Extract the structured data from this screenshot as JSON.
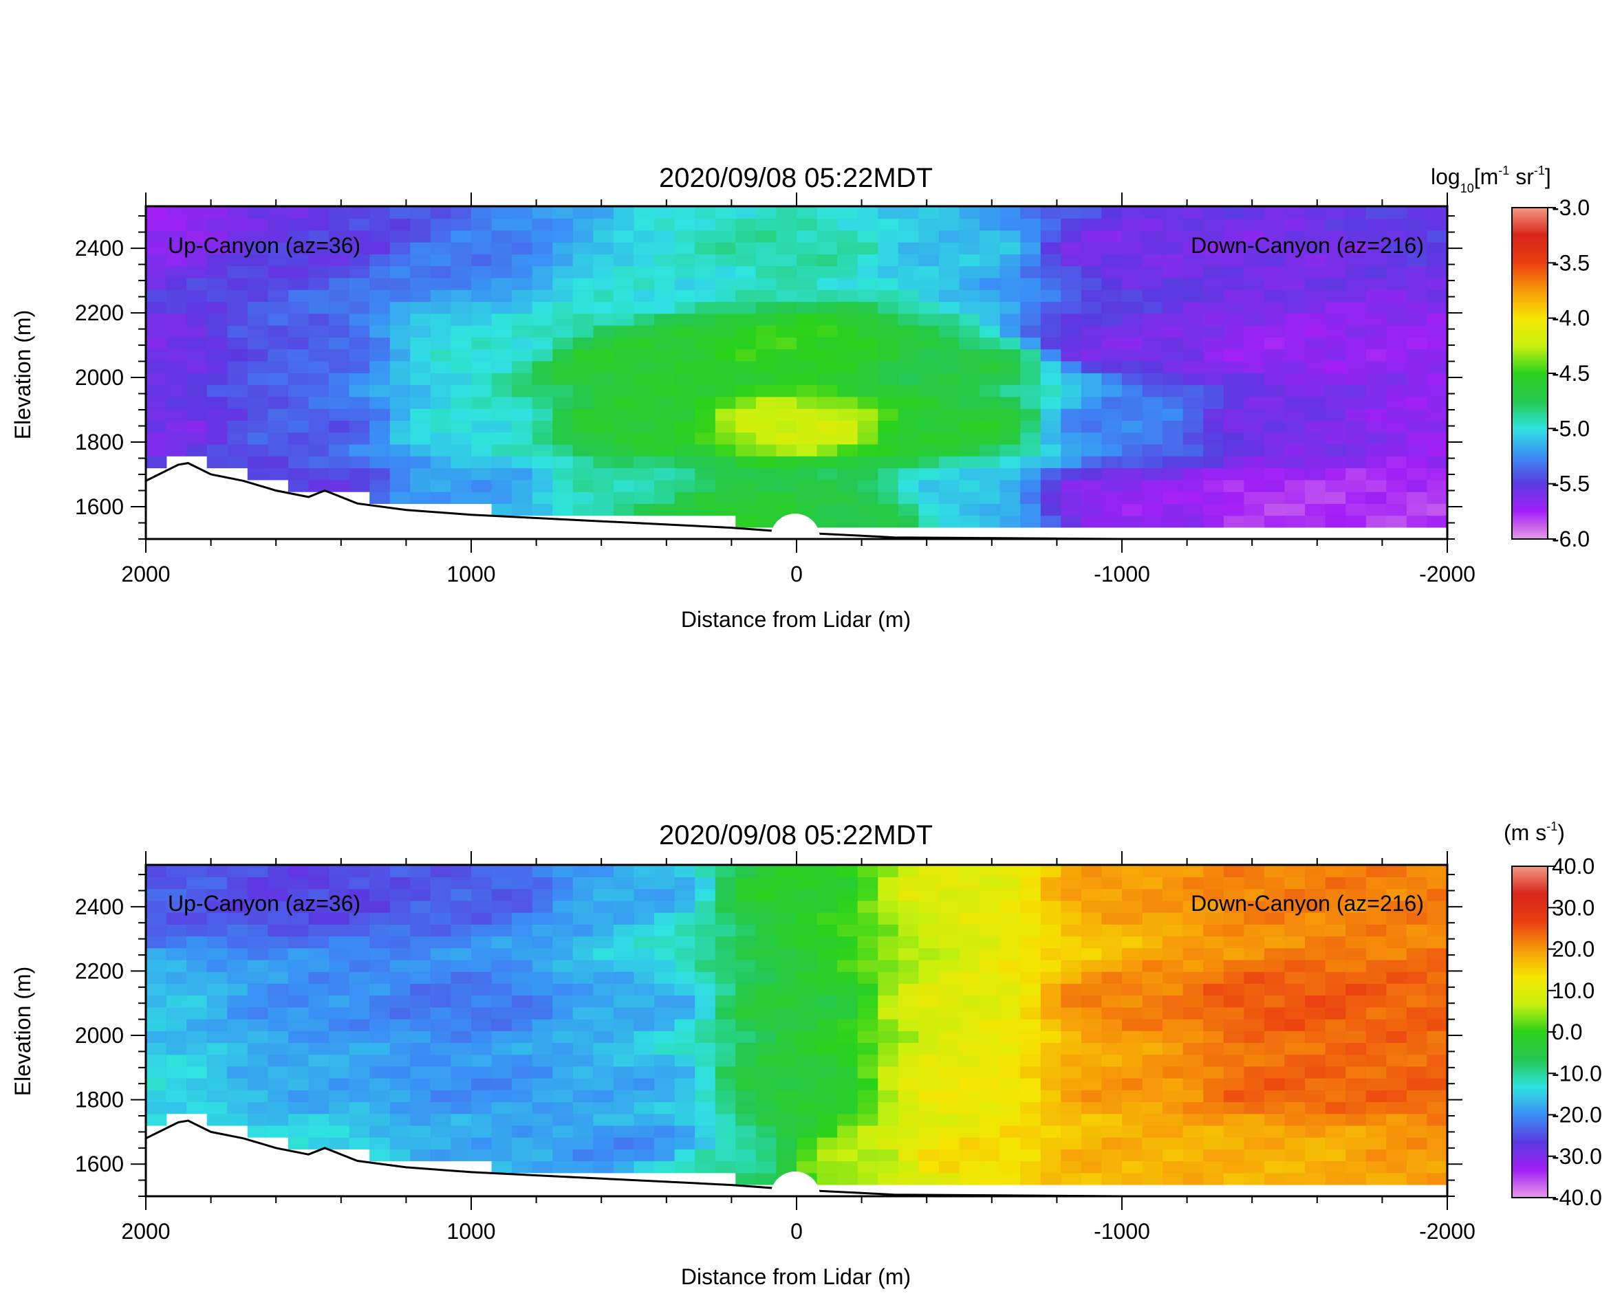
{
  "chart_data": [
    {
      "type": "heatmap",
      "title": "2020/09/08 05:22MDT",
      "xlabel": "Distance from Lidar (m)",
      "ylabel": "Elevation (m)",
      "xlim": [
        2000,
        -2000
      ],
      "ylim": [
        1500,
        2530
      ],
      "x_ticks": [
        2000,
        1000,
        0,
        -1000,
        -2000
      ],
      "y_ticks": [
        1600,
        1800,
        2000,
        2200,
        2400
      ],
      "grid": false,
      "annotations": [
        "Up-Canyon (az=36)",
        "Down-Canyon (az=216)"
      ],
      "colorbar": {
        "label_base": "log",
        "label_sub": "10",
        "label_unit_1": "[m",
        "label_exp_1": "-1",
        "label_unit_2": " sr",
        "label_exp_2": "-1",
        "label_close": "]",
        "vmin": -6.0,
        "vmax": -3.0,
        "ticks": [
          "-3.0",
          "-3.5",
          "-4.0",
          "-4.5",
          "-5.0",
          "-5.5",
          "-6.0"
        ],
        "colors": [
          "#e79be6",
          "#a21ff6",
          "#5a3ae0",
          "#3a8ff5",
          "#2fe3e0",
          "#24c850",
          "#2bd21b",
          "#c9f10f",
          "#f5e500",
          "#f79a09",
          "#eb3e11",
          "#d8241a",
          "#f29a84"
        ]
      },
      "field": {
        "description_cells": [
          {
            "x": 2000,
            "y": 2450,
            "v": -5.7
          },
          {
            "x": 1500,
            "y": 2400,
            "v": -5.5
          },
          {
            "x": 1000,
            "y": 2350,
            "v": -5.3
          },
          {
            "x": 500,
            "y": 2300,
            "v": -5.0
          },
          {
            "x": 0,
            "y": 2400,
            "v": -4.9
          },
          {
            "x": -500,
            "y": 2400,
            "v": -5.1
          },
          {
            "x": -1000,
            "y": 2400,
            "v": -5.6
          },
          {
            "x": -1500,
            "y": 2400,
            "v": -5.6
          },
          {
            "x": -2000,
            "y": 2450,
            "v": -5.5
          },
          {
            "x": 2000,
            "y": 2100,
            "v": -5.6
          },
          {
            "x": 1500,
            "y": 2100,
            "v": -5.4
          },
          {
            "x": 1000,
            "y": 2100,
            "v": -5.0
          },
          {
            "x": 500,
            "y": 2050,
            "v": -4.6
          },
          {
            "x": 0,
            "y": 2100,
            "v": -4.5
          },
          {
            "x": -500,
            "y": 2050,
            "v": -4.7
          },
          {
            "x": -1000,
            "y": 2100,
            "v": -5.6
          },
          {
            "x": -1500,
            "y": 2100,
            "v": -5.7
          },
          {
            "x": -2000,
            "y": 2100,
            "v": -5.7
          },
          {
            "x": 2000,
            "y": 1850,
            "v": -5.6
          },
          {
            "x": 1500,
            "y": 1850,
            "v": -5.4
          },
          {
            "x": 1000,
            "y": 1850,
            "v": -5.0
          },
          {
            "x": 500,
            "y": 1850,
            "v": -4.6
          },
          {
            "x": 0,
            "y": 1850,
            "v": -4.2
          },
          {
            "x": -500,
            "y": 1850,
            "v": -4.6
          },
          {
            "x": -1000,
            "y": 1850,
            "v": -5.3
          },
          {
            "x": -1500,
            "y": 1850,
            "v": -5.6
          },
          {
            "x": -2000,
            "y": 1850,
            "v": -5.7
          },
          {
            "x": 1500,
            "y": 1650,
            "v": -5.5
          },
          {
            "x": 1000,
            "y": 1650,
            "v": -5.2
          },
          {
            "x": 500,
            "y": 1650,
            "v": -4.9
          },
          {
            "x": 200,
            "y": 1600,
            "v": -4.6
          },
          {
            "x": -200,
            "y": 1600,
            "v": -4.7
          },
          {
            "x": -500,
            "y": 1620,
            "v": -5.1
          },
          {
            "x": -1000,
            "y": 1620,
            "v": -5.7
          },
          {
            "x": -1500,
            "y": 1620,
            "v": -5.8
          },
          {
            "x": -2000,
            "y": 1620,
            "v": -5.8
          }
        ]
      }
    },
    {
      "type": "heatmap",
      "title": "2020/09/08 05:22MDT",
      "xlabel": "Distance from Lidar (m)",
      "ylabel": "Elevation (m)",
      "xlim": [
        2000,
        -2000
      ],
      "ylim": [
        1500,
        2530
      ],
      "x_ticks": [
        2000,
        1000,
        0,
        -1000,
        -2000
      ],
      "y_ticks": [
        1600,
        1800,
        2000,
        2200,
        2400
      ],
      "grid": false,
      "annotations": [
        "Up-Canyon (az=36)",
        "Down-Canyon (az=216)"
      ],
      "colorbar": {
        "label_open": "(m s",
        "label_exp": "-1",
        "label_close": ")",
        "vmin": -40.0,
        "vmax": 40.0,
        "ticks": [
          "40.0",
          "30.0",
          "20.0",
          "10.0",
          "0.0",
          "-10.0",
          "-20.0",
          "-30.0",
          "-40.0"
        ],
        "colors": [
          "#e79be6",
          "#a21ff6",
          "#5a3ae0",
          "#3a8ff5",
          "#2fe3e0",
          "#24c850",
          "#2bd21b",
          "#c9f10f",
          "#f5e500",
          "#f79a09",
          "#eb3e11",
          "#d8241a",
          "#f29a84"
        ]
      },
      "field": {
        "description_cells": [
          {
            "x": 2000,
            "y": 2450,
            "v": -24
          },
          {
            "x": 1500,
            "y": 2450,
            "v": -26
          },
          {
            "x": 1000,
            "y": 2450,
            "v": -24
          },
          {
            "x": 500,
            "y": 2450,
            "v": -18
          },
          {
            "x": 0,
            "y": 2450,
            "v": -2
          },
          {
            "x": -500,
            "y": 2450,
            "v": 10
          },
          {
            "x": -1000,
            "y": 2450,
            "v": 20
          },
          {
            "x": -1500,
            "y": 2450,
            "v": 22
          },
          {
            "x": -2000,
            "y": 2450,
            "v": 22
          },
          {
            "x": 2000,
            "y": 2100,
            "v": -16
          },
          {
            "x": 1500,
            "y": 2100,
            "v": -20
          },
          {
            "x": 1000,
            "y": 2100,
            "v": -22
          },
          {
            "x": 500,
            "y": 2100,
            "v": -18
          },
          {
            "x": 0,
            "y": 2100,
            "v": -4
          },
          {
            "x": -500,
            "y": 2100,
            "v": 10
          },
          {
            "x": -1000,
            "y": 2100,
            "v": 22
          },
          {
            "x": -1500,
            "y": 2100,
            "v": 25
          },
          {
            "x": -2000,
            "y": 2100,
            "v": 24
          },
          {
            "x": 2000,
            "y": 1850,
            "v": -14
          },
          {
            "x": 1500,
            "y": 1850,
            "v": -18
          },
          {
            "x": 1000,
            "y": 1850,
            "v": -20
          },
          {
            "x": 500,
            "y": 1850,
            "v": -18
          },
          {
            "x": 0,
            "y": 1850,
            "v": -4
          },
          {
            "x": -500,
            "y": 1850,
            "v": 12
          },
          {
            "x": -1000,
            "y": 1850,
            "v": 20
          },
          {
            "x": -1500,
            "y": 1850,
            "v": 24
          },
          {
            "x": -2000,
            "y": 1850,
            "v": 24
          },
          {
            "x": 1500,
            "y": 1650,
            "v": -14
          },
          {
            "x": 1000,
            "y": 1650,
            "v": -18
          },
          {
            "x": 500,
            "y": 1650,
            "v": -20
          },
          {
            "x": 200,
            "y": 1600,
            "v": -10
          },
          {
            "x": -200,
            "y": 1600,
            "v": 6
          },
          {
            "x": -500,
            "y": 1620,
            "v": 14
          },
          {
            "x": -1000,
            "y": 1620,
            "v": 18
          },
          {
            "x": -1500,
            "y": 1620,
            "v": 18
          },
          {
            "x": -2000,
            "y": 1620,
            "v": 20
          }
        ]
      }
    }
  ],
  "terrain": {
    "x": [
      2000,
      1900,
      1870,
      1800,
      1700,
      1600,
      1500,
      1450,
      1350,
      1200,
      1000,
      800,
      600,
      400,
      200,
      0,
      -200,
      -300,
      -1000,
      -2000
    ],
    "y": [
      1680,
      1730,
      1735,
      1700,
      1680,
      1650,
      1630,
      1650,
      1610,
      1590,
      1575,
      1565,
      1555,
      1545,
      1535,
      1520,
      1510,
      1505,
      1500,
      1500
    ]
  }
}
